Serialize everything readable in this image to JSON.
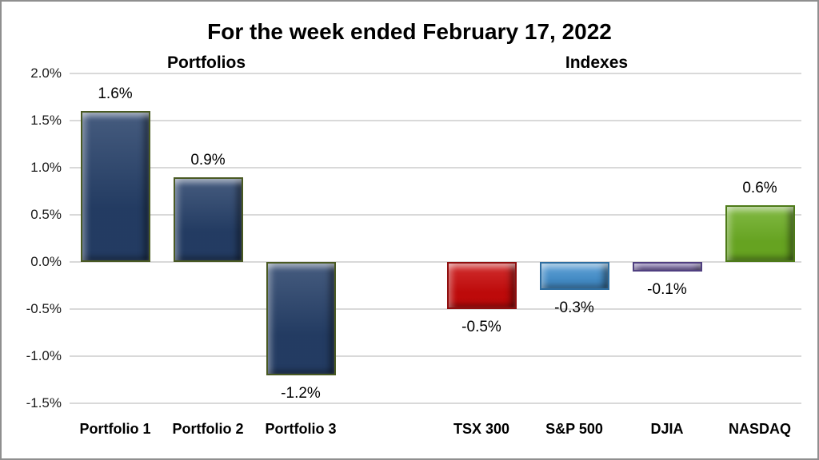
{
  "chart_data": {
    "type": "bar",
    "title": "For the week ended February 17, 2022",
    "group_labels": [
      "Portfolios",
      "Indexes"
    ],
    "categories": [
      "Portfolio 1",
      "Portfolio 2",
      "Portfolio 3",
      "TSX 300",
      "S&P 500",
      "DJIA",
      "NASDAQ"
    ],
    "groups": [
      "Portfolios",
      "Portfolios",
      "Portfolios",
      "Indexes",
      "Indexes",
      "Indexes",
      "Indexes"
    ],
    "values": [
      1.6,
      0.9,
      -1.2,
      -0.5,
      -0.3,
      -0.1,
      0.6
    ],
    "data_labels": [
      "1.6%",
      "0.9%",
      "-1.2%",
      "-0.5%",
      "-0.3%",
      "-0.1%",
      "0.6%"
    ],
    "bar_fill_colors": [
      "#253f68",
      "#253f68",
      "#253f68",
      "#c90b0b",
      "#4793d0",
      "#6e58a8",
      "#6cad23"
    ],
    "bar_border_colors": [
      "#4a5a23",
      "#4a5a23",
      "#4a5a23",
      "#8f0e0e",
      "#2e6da0",
      "#4f3f80",
      "#4d7a18"
    ],
    "xlabel": "",
    "ylabel": "",
    "ylim": [
      -1.5,
      2.0
    ],
    "ytick_step": 0.5,
    "yticks": [
      "2.0%",
      "1.5%",
      "1.0%",
      "0.5%",
      "0.0%",
      "-0.5%",
      "-1.0%",
      "-1.5%"
    ],
    "grid": true,
    "legend": "none"
  }
}
